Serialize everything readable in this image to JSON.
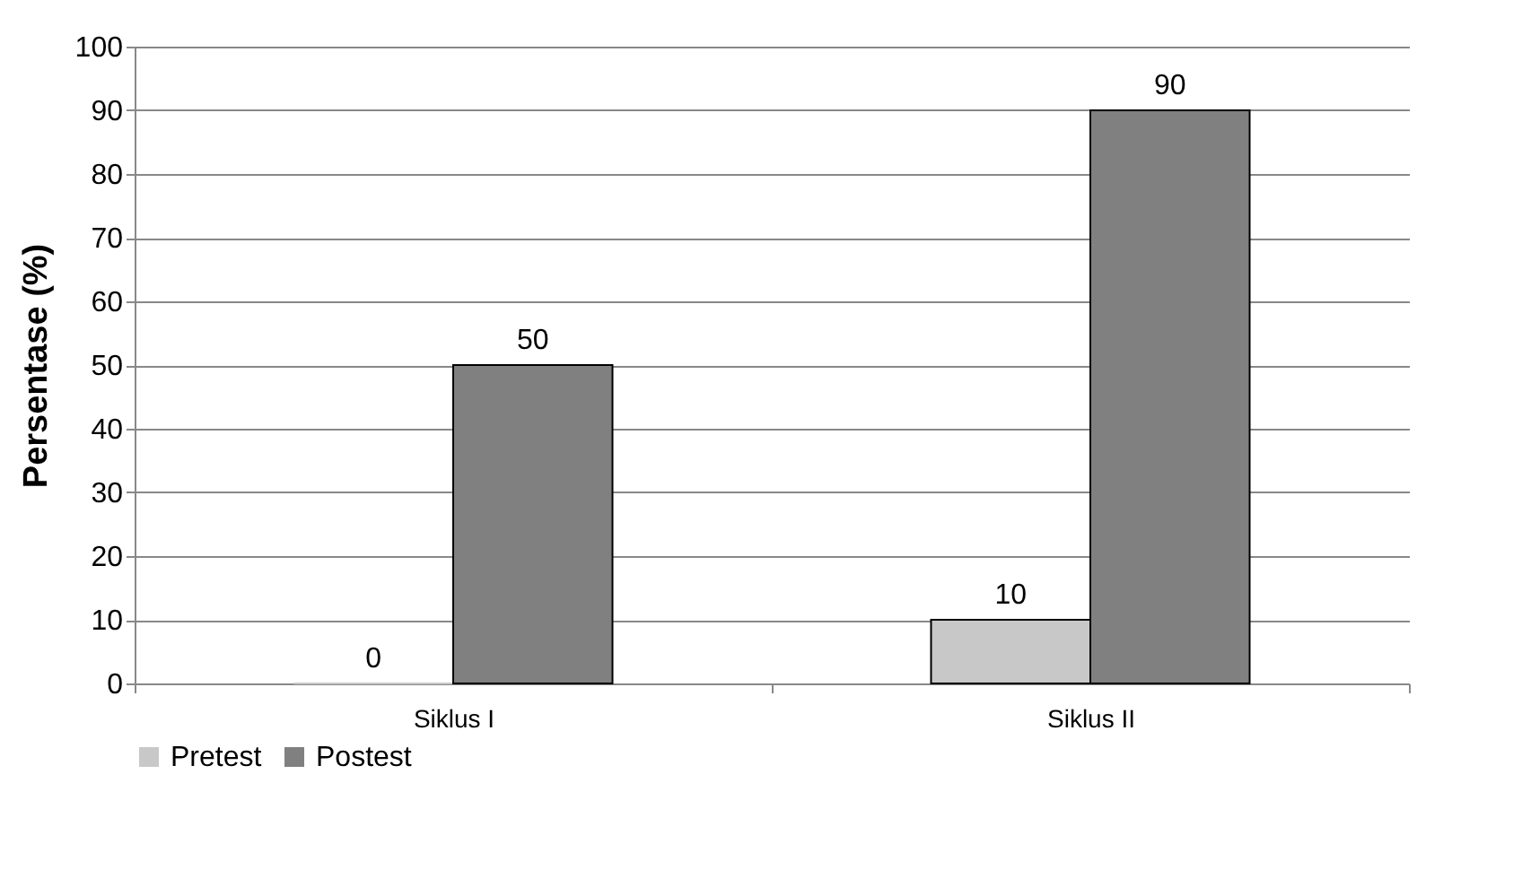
{
  "chart_data": {
    "type": "bar",
    "ylabel": "Persentase (%)",
    "categories": [
      "Siklus I",
      "Siklus II"
    ],
    "series": [
      {
        "name": "Pretest",
        "color": "#c8c8c8",
        "values": [
          0,
          10
        ]
      },
      {
        "name": "Postest",
        "color": "#808080",
        "values": [
          50,
          90
        ]
      }
    ],
    "ylim": [
      0,
      100
    ],
    "yticks": [
      0,
      10,
      20,
      30,
      40,
      50,
      60,
      70,
      80,
      90,
      100
    ],
    "grid": "y",
    "legend": "bottom",
    "data_labels": true
  }
}
